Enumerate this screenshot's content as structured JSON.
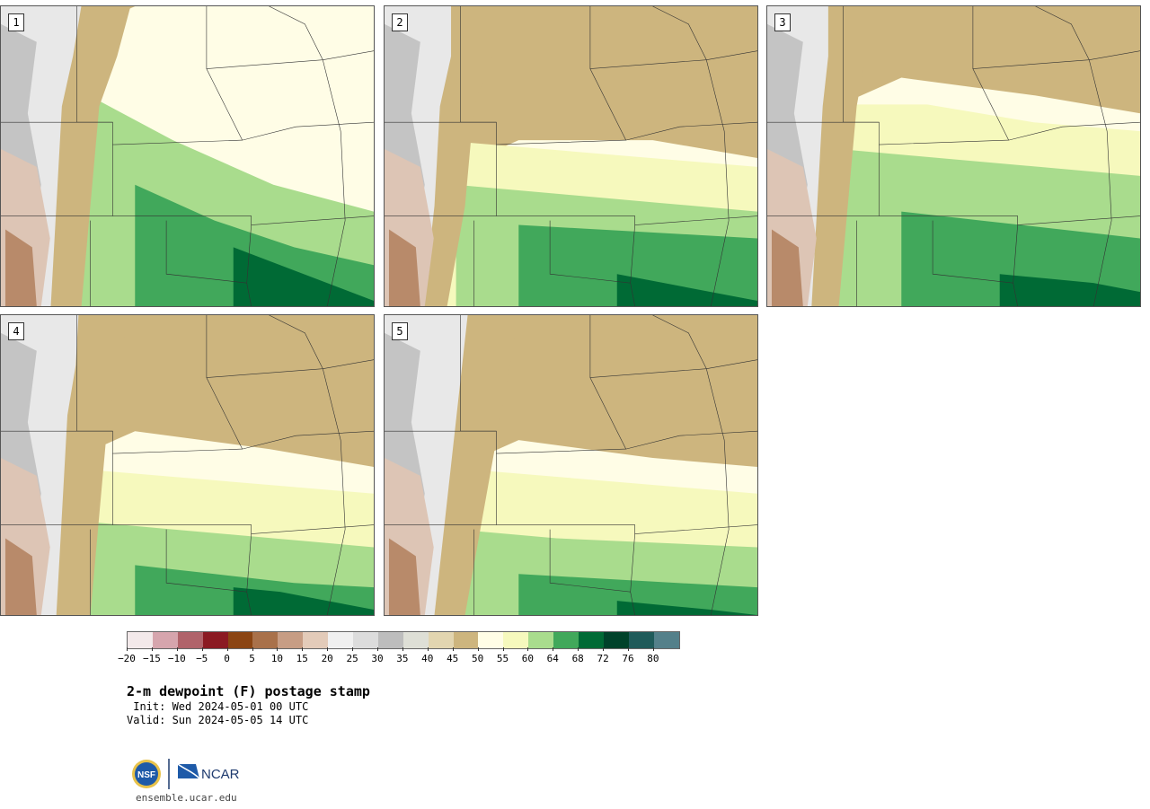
{
  "panels": [
    {
      "label": "1",
      "scheme": "wet"
    },
    {
      "label": "2",
      "scheme": "mid"
    },
    {
      "label": "3",
      "scheme": "east"
    },
    {
      "label": "4",
      "scheme": "dry"
    },
    {
      "label": "5",
      "scheme": "dryer"
    }
  ],
  "colorbar": {
    "colors": [
      "#f3e9ea",
      "#d6a5ad",
      "#b0636a",
      "#8b1a22",
      "#8b4513",
      "#a9714a",
      "#c79d84",
      "#e3cbb9",
      "#f0f0f0",
      "#dcdcdc",
      "#bdbdbd",
      "#dedfd6",
      "#e2d5b0",
      "#cdb57e",
      "#fffde6",
      "#f6f9bd",
      "#a9dc8d",
      "#41a85b",
      "#006a35",
      "#00422a",
      "#1f5b5a",
      "#54808a"
    ],
    "ticks": [
      "−20",
      "−15",
      "−10",
      "−5",
      "0",
      "5",
      "10",
      "15",
      "20",
      "25",
      "30",
      "35",
      "40",
      "45",
      "50",
      "55",
      "60",
      "64",
      "68",
      "72",
      "76",
      "80"
    ]
  },
  "title": "2-m dewpoint (F) postage stamp",
  "init": " Init: Wed 2024-05-01 00 UTC",
  "valid": "Valid: Sun 2024-05-05 14 UTC",
  "logo": {
    "left": "NSF",
    "right": "NCAR"
  },
  "site": "ensemble.ucar.edu"
}
